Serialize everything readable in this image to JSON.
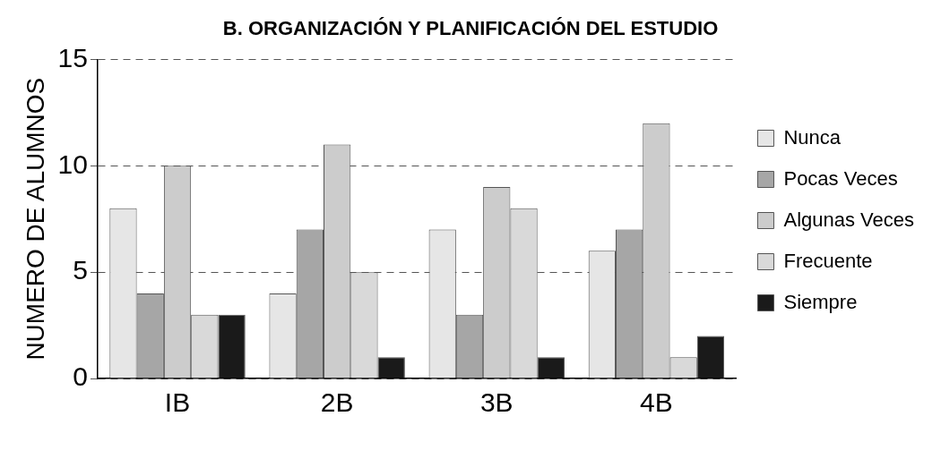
{
  "chart_data": {
    "type": "bar",
    "title": "B. ORGANIZACIÓN Y PLANIFICACIÓN DEL ESTUDIO",
    "ylabel": "NUMERO DE ALUMNOS",
    "categories": [
      "IB",
      "2B",
      "3B",
      "4B"
    ],
    "series": [
      {
        "name": "Nunca",
        "color": "#e6e6e6",
        "values": [
          8,
          4,
          7,
          6
        ]
      },
      {
        "name": "Pocas Veces",
        "color": "#a6a6a6",
        "values": [
          4,
          7,
          3,
          7
        ]
      },
      {
        "name": "Algunas Veces",
        "color": "#cccccc",
        "values": [
          10,
          11,
          9,
          12
        ]
      },
      {
        "name": "Frecuente",
        "color": "#d9d9d9",
        "values": [
          3,
          5,
          8,
          1
        ]
      },
      {
        "name": "Siempre",
        "color": "#1a1a1a",
        "values": [
          3,
          1,
          1,
          2
        ]
      }
    ],
    "ylim": [
      0,
      15
    ],
    "yticks": [
      0,
      5,
      10,
      15
    ],
    "grid": "y",
    "legend": "right"
  }
}
